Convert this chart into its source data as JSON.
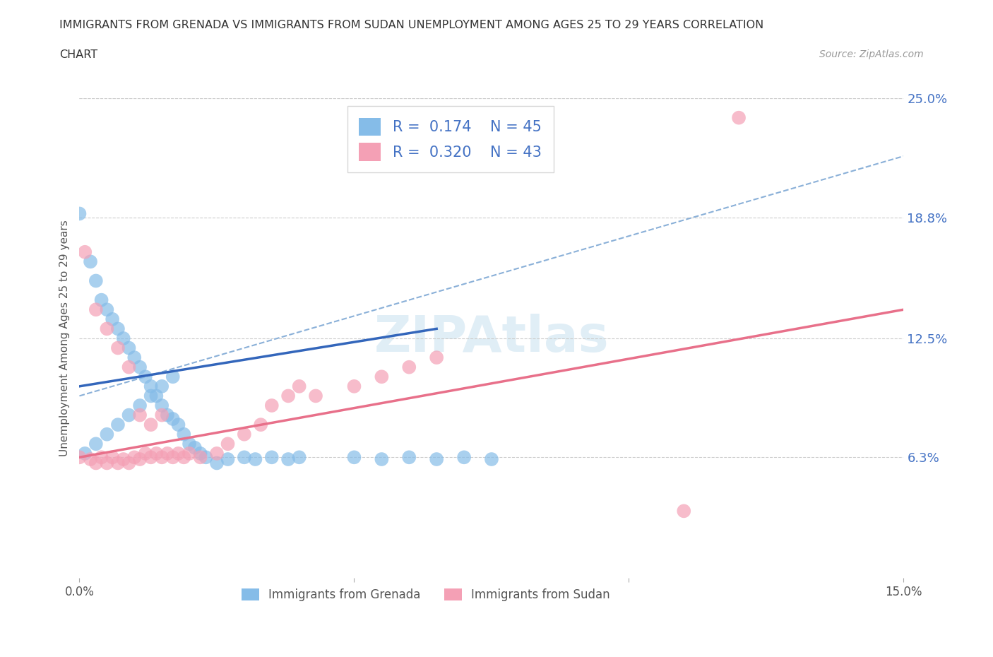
{
  "title_line1": "IMMIGRANTS FROM GRENADA VS IMMIGRANTS FROM SUDAN UNEMPLOYMENT AMONG AGES 25 TO 29 YEARS CORRELATION",
  "title_line2": "CHART",
  "source": "Source: ZipAtlas.com",
  "ylabel": "Unemployment Among Ages 25 to 29 years",
  "xlim": [
    0.0,
    0.15
  ],
  "ylim": [
    0.0,
    0.25
  ],
  "ytick_labels_right": [
    "6.3%",
    "12.5%",
    "18.8%",
    "25.0%"
  ],
  "ytick_values_right": [
    0.063,
    0.125,
    0.188,
    0.25
  ],
  "R1": 0.174,
  "N1": 45,
  "R2": 0.32,
  "N2": 43,
  "color_grenada": "#85bce8",
  "color_sudan": "#f4a0b5",
  "color_blue_text": "#4472c4",
  "color_line_grenada": "#3366bb",
  "color_line_sudan": "#e8708a",
  "color_dashed": "#8ab0d8",
  "legend_grenada": "Immigrants from Grenada",
  "legend_sudan": "Immigrants from Sudan",
  "grenada_x": [
    0.0,
    0.002,
    0.003,
    0.004,
    0.005,
    0.006,
    0.007,
    0.008,
    0.009,
    0.01,
    0.011,
    0.012,
    0.013,
    0.014,
    0.015,
    0.016,
    0.017,
    0.018,
    0.019,
    0.02,
    0.021,
    0.022,
    0.023,
    0.025,
    0.027,
    0.03,
    0.032,
    0.035,
    0.038,
    0.04,
    0.05,
    0.055,
    0.06,
    0.065,
    0.07,
    0.075,
    0.001,
    0.003,
    0.005,
    0.007,
    0.009,
    0.011,
    0.013,
    0.015,
    0.017
  ],
  "grenada_y": [
    0.19,
    0.165,
    0.155,
    0.145,
    0.14,
    0.135,
    0.13,
    0.125,
    0.12,
    0.115,
    0.11,
    0.105,
    0.1,
    0.095,
    0.09,
    0.085,
    0.083,
    0.08,
    0.075,
    0.07,
    0.068,
    0.065,
    0.063,
    0.06,
    0.062,
    0.063,
    0.062,
    0.063,
    0.062,
    0.063,
    0.063,
    0.062,
    0.063,
    0.062,
    0.063,
    0.062,
    0.065,
    0.07,
    0.075,
    0.08,
    0.085,
    0.09,
    0.095,
    0.1,
    0.105
  ],
  "sudan_x": [
    0.0,
    0.002,
    0.003,
    0.004,
    0.005,
    0.006,
    0.007,
    0.008,
    0.009,
    0.01,
    0.011,
    0.012,
    0.013,
    0.014,
    0.015,
    0.016,
    0.017,
    0.018,
    0.019,
    0.02,
    0.022,
    0.025,
    0.027,
    0.03,
    0.033,
    0.035,
    0.038,
    0.04,
    0.043,
    0.05,
    0.055,
    0.06,
    0.065,
    0.12,
    0.11,
    0.001,
    0.003,
    0.005,
    0.007,
    0.009,
    0.011,
    0.013,
    0.015
  ],
  "sudan_y": [
    0.063,
    0.062,
    0.06,
    0.063,
    0.06,
    0.063,
    0.06,
    0.062,
    0.06,
    0.063,
    0.062,
    0.065,
    0.063,
    0.065,
    0.063,
    0.065,
    0.063,
    0.065,
    0.063,
    0.065,
    0.063,
    0.065,
    0.07,
    0.075,
    0.08,
    0.09,
    0.095,
    0.1,
    0.095,
    0.1,
    0.105,
    0.11,
    0.115,
    0.24,
    0.035,
    0.17,
    0.14,
    0.13,
    0.12,
    0.11,
    0.085,
    0.08,
    0.085
  ],
  "line_grenada_x0": 0.0,
  "line_grenada_x1": 0.065,
  "line_grenada_y0": 0.1,
  "line_grenada_y1": 0.13,
  "line_sudan_x0": 0.0,
  "line_sudan_x1": 0.15,
  "line_sudan_y0": 0.063,
  "line_sudan_y1": 0.14,
  "line_dashed_x0": 0.0,
  "line_dashed_x1": 0.15,
  "line_dashed_y0": 0.095,
  "line_dashed_y1": 0.22
}
